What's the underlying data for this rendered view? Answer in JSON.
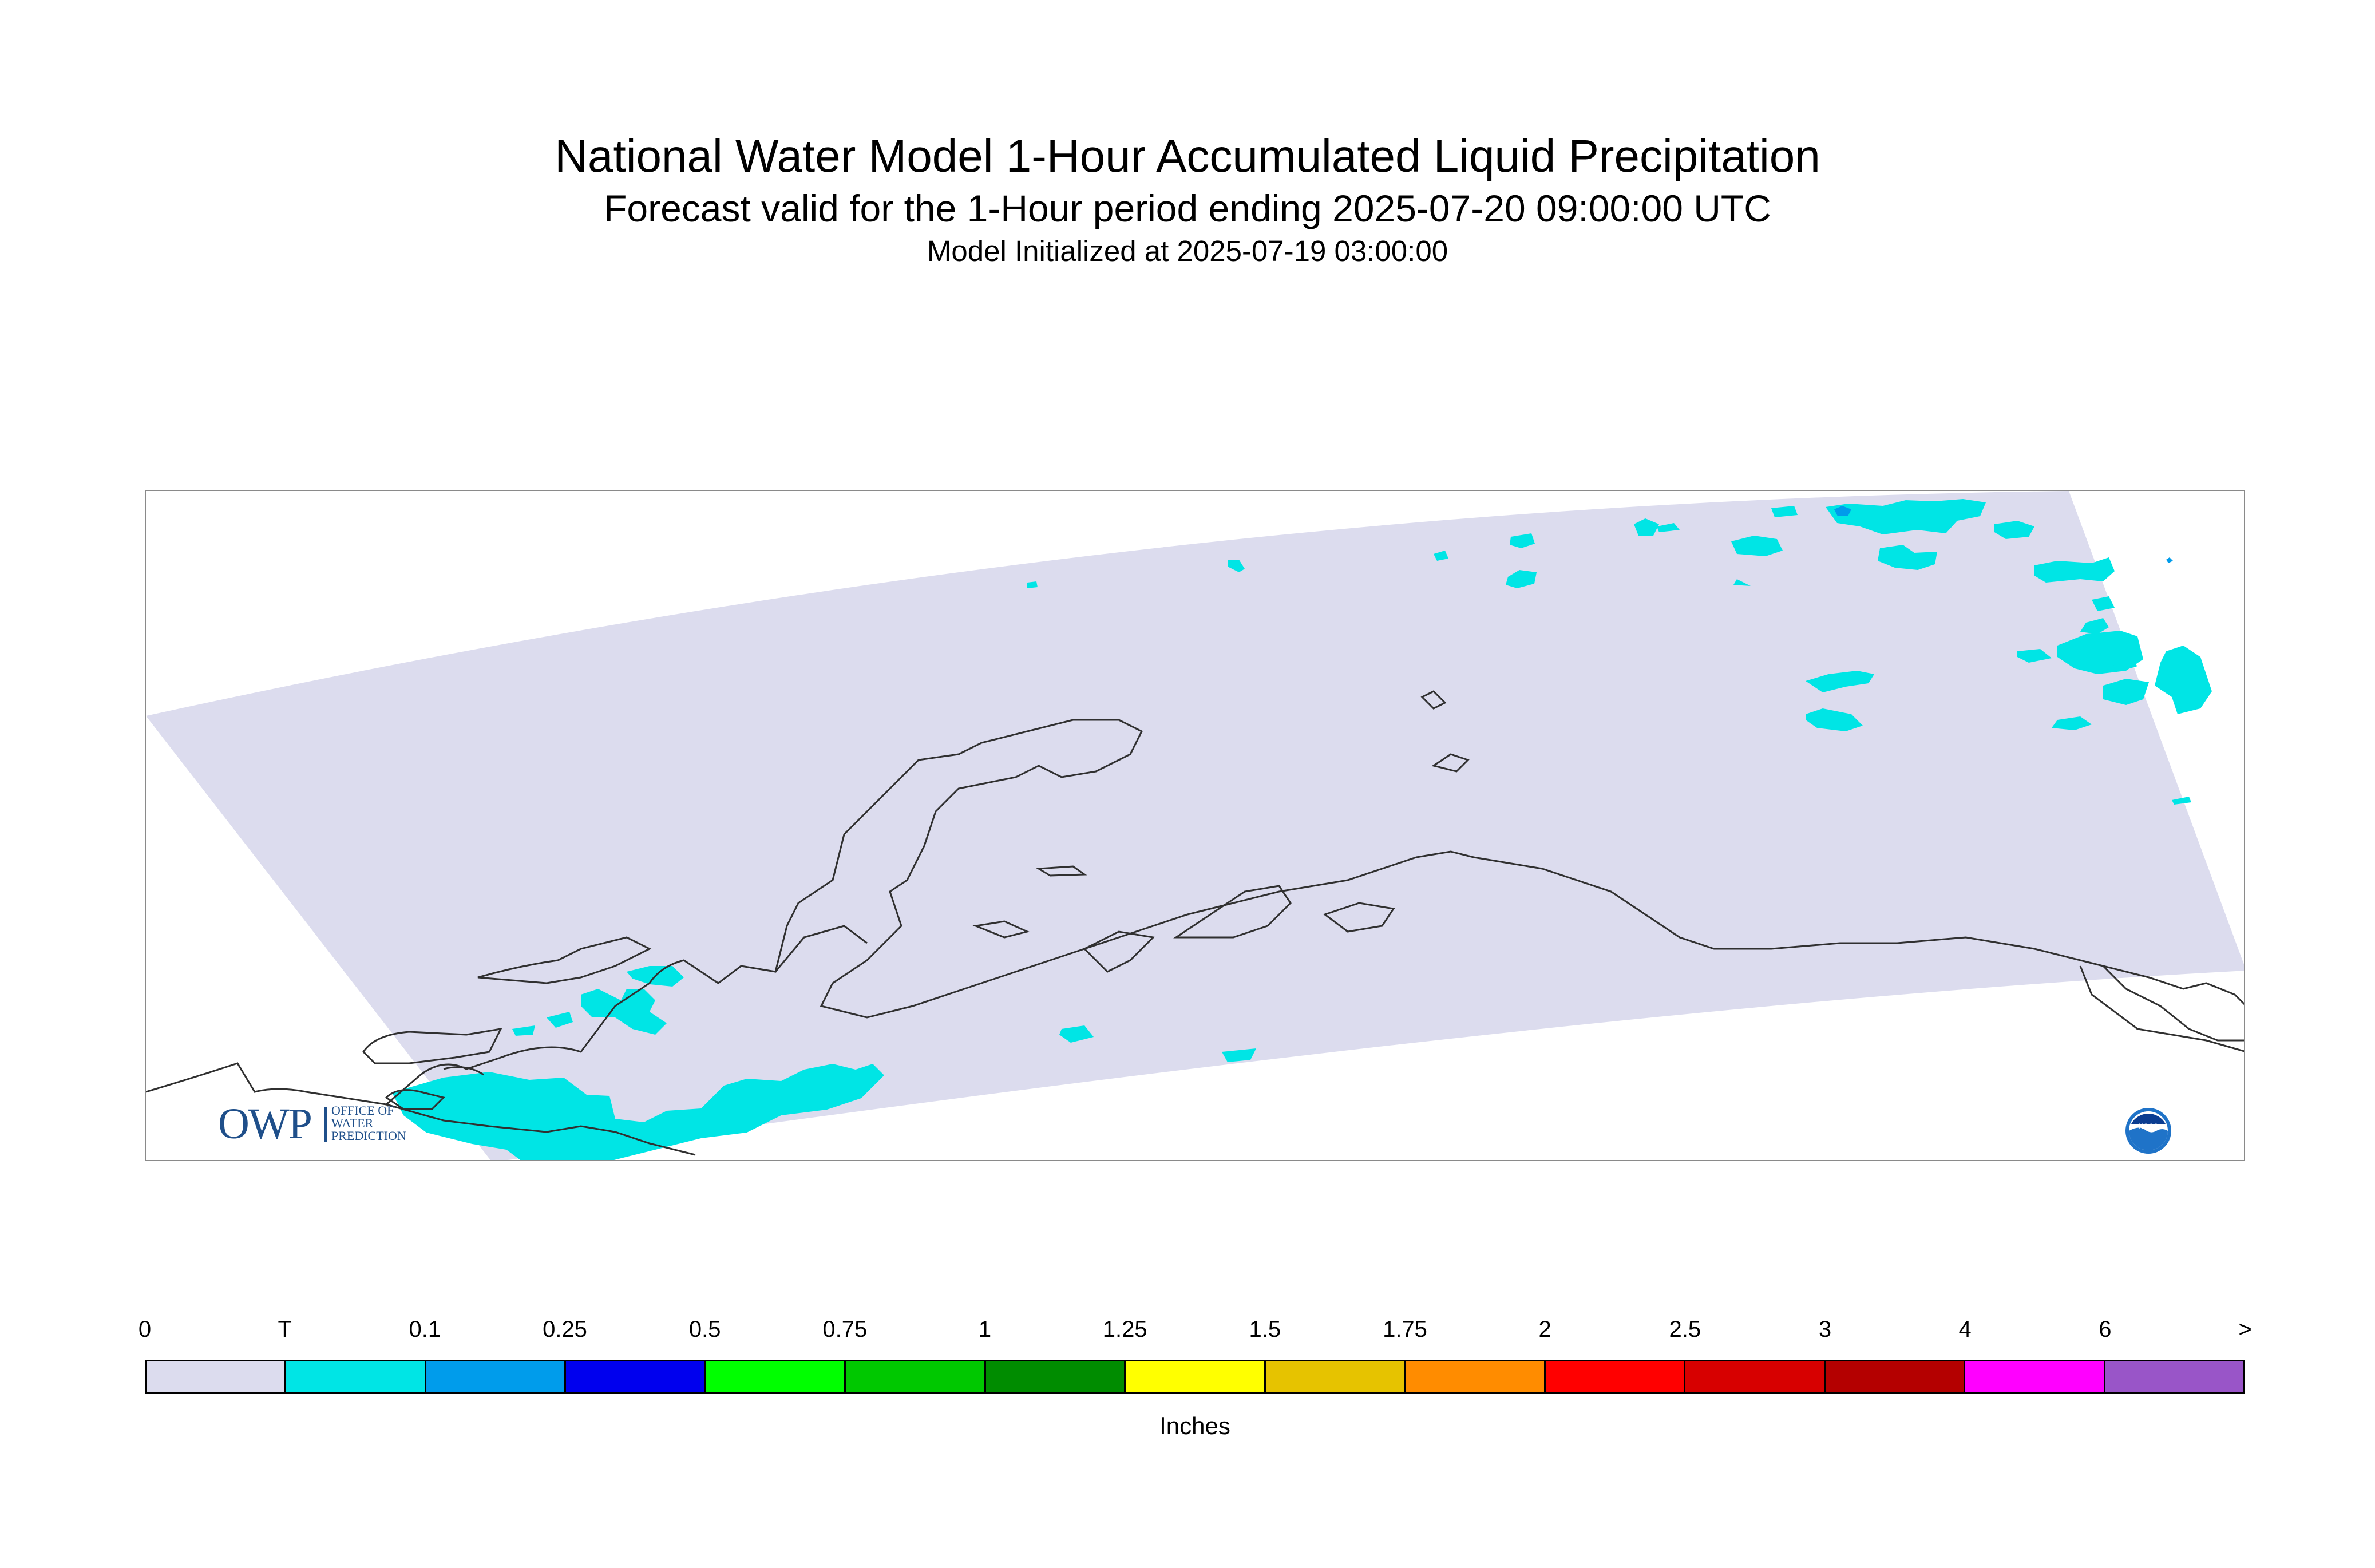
{
  "titles": {
    "main": "National Water Model 1-Hour Accumulated Liquid Precipitation",
    "forecast": "Forecast valid for the 1-Hour period ending 2025-07-20 09:00:00 UTC",
    "init": "Model Initialized at 2025-07-19 03:00:00"
  },
  "map": {
    "region": "Alaska",
    "domain_fill": "#dcdcee",
    "coastline_color": "#303030",
    "precip_color_trace": "#00e5e5",
    "precip_color_01": "#009ceb"
  },
  "logos": {
    "owp": {
      "letters": "OWP",
      "subtitle": "OFFICE OF\nWATER\nPREDICTION"
    },
    "noaa": {
      "text": "NOAA"
    }
  },
  "legend": {
    "labels": [
      "0",
      "T",
      "0.1",
      "0.25",
      "0.5",
      "0.75",
      "1",
      "1.25",
      "1.5",
      "1.75",
      "2",
      "2.5",
      "3",
      "4",
      "6",
      ">"
    ],
    "colors": [
      "#dcdcee",
      "#00e5e5",
      "#009ceb",
      "#0000ee",
      "#00ff00",
      "#00c800",
      "#008c00",
      "#ffff00",
      "#e6c300",
      "#ff8c00",
      "#ff0000",
      "#d70000",
      "#b40000",
      "#ff00ff",
      "#9955c8"
    ],
    "units": "Inches"
  }
}
